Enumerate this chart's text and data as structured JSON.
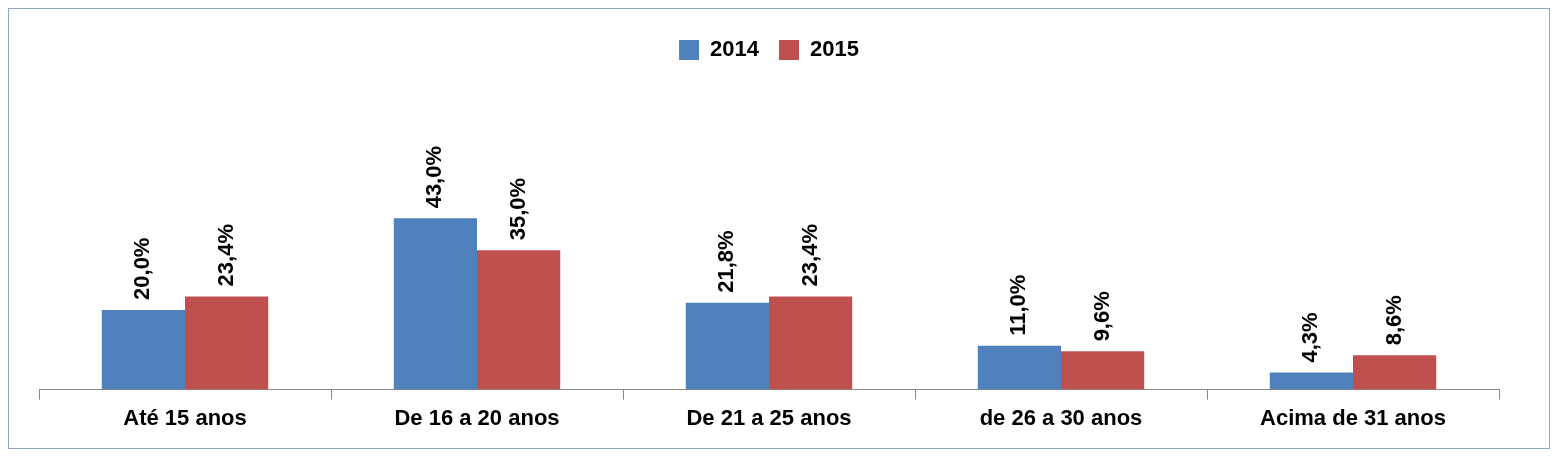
{
  "chart_data": {
    "type": "bar",
    "categories": [
      "Até 15 anos",
      "De 16 a 20 anos",
      "De 21 a 25 anos",
      "de 26 a 30 anos",
      "Acima de 31 anos"
    ],
    "series": [
      {
        "name": "2014",
        "color": "#4f81bd",
        "values": [
          20.0,
          43.0,
          21.8,
          11.0,
          4.3
        ],
        "value_labels": [
          "20,0%",
          "43,0%",
          "21,8%",
          "11,0%",
          "4,3%"
        ]
      },
      {
        "name": "2015",
        "color": "#c0504d",
        "values": [
          23.4,
          35.0,
          23.4,
          9.6,
          8.6
        ],
        "value_labels": [
          "23,4%",
          "35,0%",
          "23,4%",
          "9,6%",
          "8,6%"
        ]
      }
    ],
    "legend": "top",
    "grid": false
  }
}
